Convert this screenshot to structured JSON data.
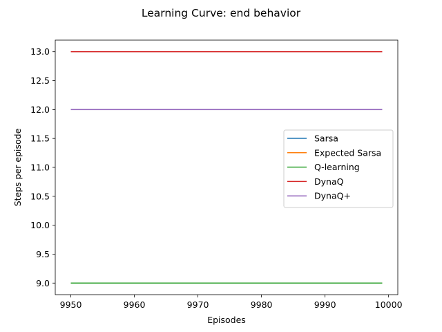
{
  "chart_data": {
    "type": "line",
    "title": "Learning Curve: end behavior",
    "xlabel": "Episodes",
    "ylabel": "Steps per episode",
    "xlim": [
      9947.55,
      10001.45
    ],
    "ylim": [
      8.8,
      13.2
    ],
    "x_range": [
      9950,
      9999
    ],
    "xticks": [
      9950,
      9960,
      9970,
      9980,
      9990,
      10000
    ],
    "yticks": [
      9.0,
      9.5,
      10.0,
      10.5,
      11.0,
      11.5,
      12.0,
      12.5,
      13.0
    ],
    "xtick_labels": [
      "9950",
      "9960",
      "9970",
      "9980",
      "9990",
      "10000"
    ],
    "ytick_labels": [
      "9.0",
      "9.5",
      "10.0",
      "10.5",
      "11.0",
      "11.5",
      "12.0",
      "12.5",
      "13.0"
    ],
    "grid": false,
    "legend_placement": "center-right",
    "series": [
      {
        "name": "Sarsa",
        "value": 9.0,
        "color": "#1f77b4"
      },
      {
        "name": "Expected Sarsa",
        "value": 9.0,
        "color": "#ff7f0e"
      },
      {
        "name": "Q-learning",
        "value": 9.0,
        "color": "#2ca02c"
      },
      {
        "name": "DynaQ",
        "value": 13.0,
        "color": "#d62728"
      },
      {
        "name": "DynaQ+",
        "value": 12.0,
        "color": "#9467bd"
      }
    ]
  }
}
